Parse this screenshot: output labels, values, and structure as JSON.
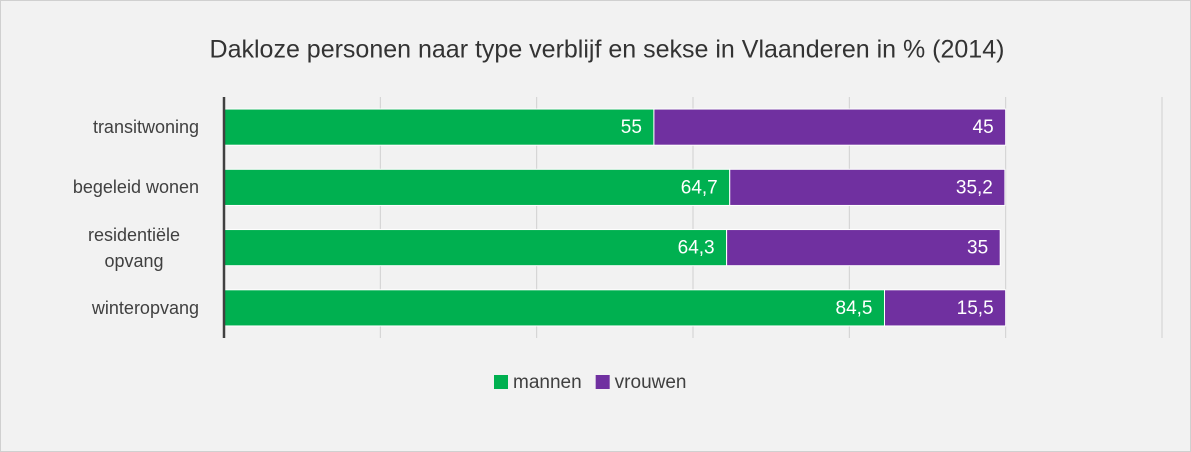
{
  "chart_data": {
    "type": "stacked-barh",
    "title": "Dakloze personen naar type verblijf en sekse in Vlaanderen in % (2014)",
    "categories": [
      "transitwoning",
      "begeleid wonen",
      "residentiële opvang",
      "winteropvang"
    ],
    "series": [
      {
        "name": "mannen",
        "color": "#00b050",
        "values": [
          55,
          64.7,
          64.3,
          84.5
        ],
        "value_labels": [
          "55",
          "64,7",
          "64,3",
          "84,5"
        ]
      },
      {
        "name": "vrouwen",
        "color": "#7030a0",
        "values": [
          45,
          35.2,
          35,
          15.5
        ],
        "value_labels": [
          "45",
          "35,2",
          "35",
          "15,5"
        ]
      }
    ],
    "xlim": [
      0,
      120
    ],
    "xticks": [
      0,
      20,
      40,
      60,
      80,
      100,
      120
    ],
    "grid": true,
    "legend": "bottom"
  }
}
